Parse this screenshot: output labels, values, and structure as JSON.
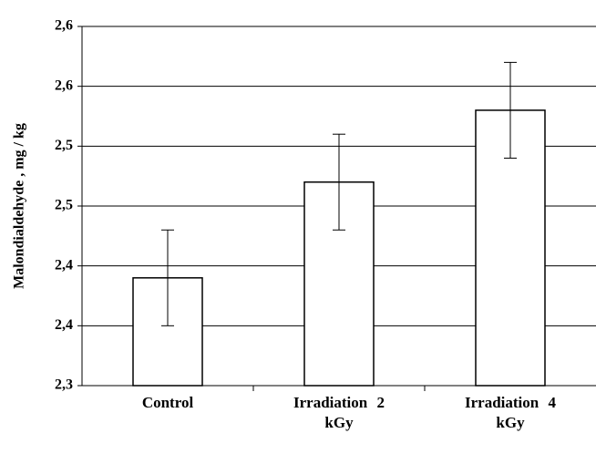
{
  "chart_data": {
    "type": "bar",
    "y_label": "Malondialdehyde , mg / kg",
    "categories": [
      "Control",
      "Irradiation 2 kGy",
      "Irradiation 4 kGy"
    ],
    "values": [
      2.39,
      2.47,
      2.53
    ],
    "errors": [
      0.04,
      0.04,
      0.04
    ],
    "color": "#ffffff",
    "ylim": [
      2.3,
      2.6
    ],
    "yticks": [
      {
        "value": 2.3,
        "label": "2,3"
      },
      {
        "value": 2.35,
        "label": "2,4"
      },
      {
        "value": 2.4,
        "label": "2,4"
      },
      {
        "value": 2.45,
        "label": "2,5"
      },
      {
        "value": 2.5,
        "label": "2,5"
      },
      {
        "value": 2.55,
        "label": "2,6"
      },
      {
        "value": 2.6,
        "label": "2,6"
      }
    ],
    "grid": true
  }
}
